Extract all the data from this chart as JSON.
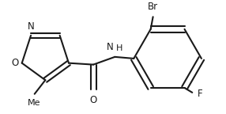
{
  "bg_color": "#ffffff",
  "line_color": "#1a1a1a",
  "line_width": 1.5,
  "font_size": 8.5,
  "figsize": [
    2.86,
    1.44
  ],
  "dpi": 100,
  "xlim": [
    0,
    286
  ],
  "ylim": [
    0,
    144
  ]
}
